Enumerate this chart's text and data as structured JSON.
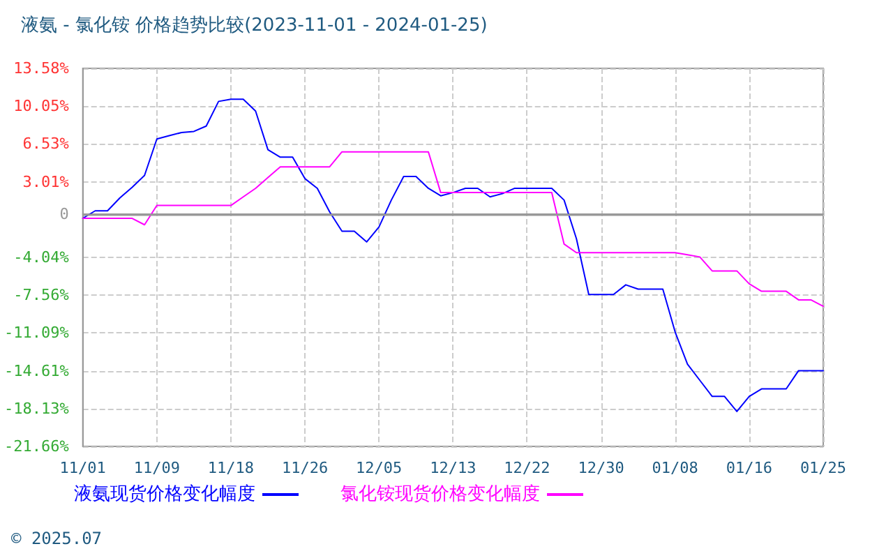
{
  "chart_data": {
    "type": "line",
    "title": "液氨 - 氯化铵 价格趋势比较(2023-11-01 - 2024-01-25)",
    "categories": [
      "11/01",
      null,
      null,
      null,
      null,
      null,
      "11/09",
      null,
      null,
      null,
      null,
      null,
      "11/18",
      null,
      null,
      null,
      null,
      null,
      "11/26",
      null,
      null,
      null,
      null,
      null,
      "12/05",
      null,
      null,
      null,
      null,
      null,
      "12/13",
      null,
      null,
      null,
      null,
      null,
      "12/22",
      null,
      null,
      null,
      null,
      null,
      "12/30",
      null,
      null,
      null,
      null,
      null,
      "01/08",
      null,
      null,
      null,
      null,
      null,
      "01/16",
      null,
      null,
      null,
      null,
      null,
      "01/25"
    ],
    "series": [
      {
        "name": "液氨现货价格变化幅度",
        "color": "#0000ff",
        "values": [
          -0.4,
          0.3,
          0.3,
          1.5,
          2.5,
          3.6,
          7.0,
          7.3,
          7.6,
          7.7,
          8.2,
          10.5,
          10.7,
          10.7,
          9.6,
          6.0,
          5.3,
          5.3,
          3.3,
          2.4,
          0.2,
          -1.6,
          -1.6,
          -2.6,
          -1.2,
          1.3,
          3.5,
          3.5,
          2.4,
          1.7,
          2.0,
          2.4,
          2.4,
          1.6,
          1.9,
          2.4,
          2.4,
          2.4,
          2.4,
          1.3,
          -2.3,
          -7.5,
          -7.5,
          -7.5,
          -6.6,
          -7.0,
          -7.0,
          -7.0,
          -11.0,
          -14.0,
          -15.5,
          -17.0,
          -17.0,
          -18.4,
          -17.0,
          -16.3,
          -16.3,
          -16.3,
          -14.6,
          -14.6,
          -14.6
        ]
      },
      {
        "name": "氯化铵现货价格变化幅度",
        "color": "#ff00ff",
        "values": [
          -0.4,
          -0.4,
          -0.4,
          -0.4,
          -0.4,
          -1.0,
          0.8,
          0.8,
          0.8,
          0.8,
          0.8,
          0.8,
          0.8,
          1.6,
          2.4,
          3.4,
          4.4,
          4.4,
          4.4,
          4.4,
          4.4,
          5.8,
          5.8,
          5.8,
          5.8,
          5.8,
          5.8,
          5.8,
          5.8,
          2.0,
          2.0,
          2.0,
          2.0,
          2.0,
          2.0,
          2.0,
          2.0,
          2.0,
          2.0,
          -2.8,
          -3.6,
          -3.6,
          -3.6,
          -3.6,
          -3.6,
          -3.6,
          -3.6,
          -3.6,
          -3.6,
          -3.8,
          -4.0,
          -5.3,
          -5.3,
          -5.3,
          -6.5,
          -7.2,
          -7.2,
          -7.2,
          -8.0,
          -8.0,
          -8.6
        ]
      }
    ],
    "ylim": [
      -21.66,
      13.58
    ],
    "yticks": [
      {
        "value": -21.66,
        "label": "-21.66%"
      },
      {
        "value": -18.13,
        "label": "-18.13%"
      },
      {
        "value": -14.61,
        "label": "-14.61%"
      },
      {
        "value": -11.09,
        "label": "-11.09%"
      },
      {
        "value": -7.56,
        "label": "-7.56%"
      },
      {
        "value": -4.04,
        "label": "-4.04%"
      },
      0,
      {
        "value": 3.01,
        "label": "3.01%"
      },
      {
        "value": 6.53,
        "label": "6.53%"
      },
      {
        "value": 10.05,
        "label": "10.05%"
      },
      {
        "value": 13.58,
        "label": "13.58%"
      }
    ],
    "ref_lines": [
      {
        "axis": "y",
        "value": 0,
        "color": "#999999",
        "line_style": "solid"
      }
    ],
    "grid": true,
    "legend": "bottom left",
    "marker": "none",
    "line_style": "solid",
    "annotations": [
      "© 2025.07"
    ]
  }
}
